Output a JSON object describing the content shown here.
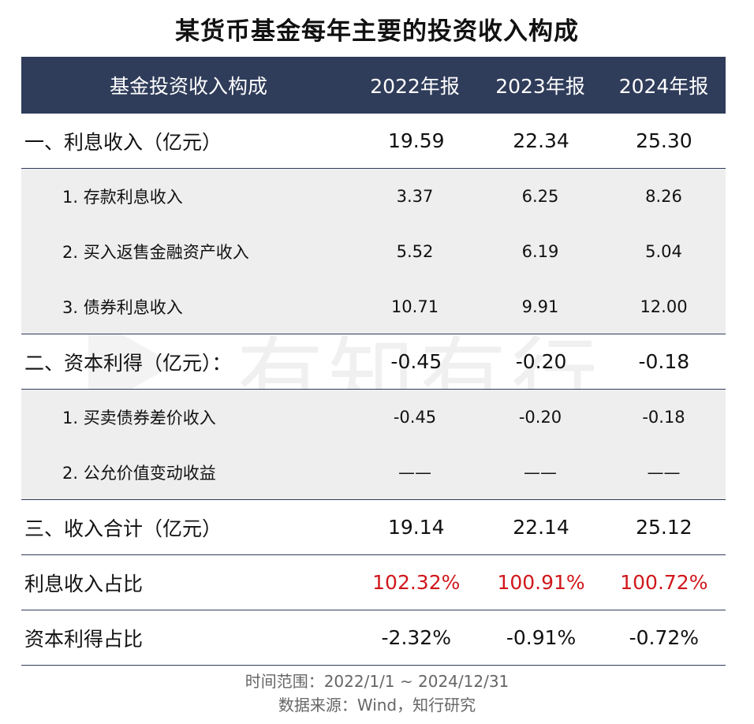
{
  "title": "某货币基金每年主要的投资收入构成",
  "watermark": "有知有行",
  "header": {
    "col0": "基金投资收入构成",
    "col1": "2022年报",
    "col2": "2023年报",
    "col3": "2024年报"
  },
  "rows": [
    {
      "label": "一、利息收入（亿元）",
      "v2022": "19.59",
      "v2023": "22.34",
      "v2024": "25.30"
    },
    {
      "label": "1. 存款利息收入",
      "v2022": "3.37",
      "v2023": "6.25",
      "v2024": "8.26"
    },
    {
      "label": "2. 买入返售金融资产收入",
      "v2022": "5.52",
      "v2023": "6.19",
      "v2024": "5.04"
    },
    {
      "label": "3. 债券利息收入",
      "v2022": "10.71",
      "v2023": "9.91",
      "v2024": "12.00"
    },
    {
      "label": "二、资本利得（亿元）：",
      "v2022": "-0.45",
      "v2023": "-0.20",
      "v2024": "-0.18"
    },
    {
      "label": "1. 买卖债券差价收入",
      "v2022": "-0.45",
      "v2023": "-0.20",
      "v2024": "-0.18"
    },
    {
      "label": "2. 公允价值变动收益",
      "v2022": "——",
      "v2023": "——",
      "v2024": "——"
    },
    {
      "label": "三、收入合计（亿元）",
      "v2022": "19.14",
      "v2023": "22.14",
      "v2024": "25.12"
    },
    {
      "label": "利息收入占比",
      "v2022": "102.32%",
      "v2023": "100.91%",
      "v2024": "100.72%"
    },
    {
      "label": "资本利得占比",
      "v2022": "-2.32%",
      "v2023": "-0.91%",
      "v2024": "-0.72%"
    }
  ],
  "footer": {
    "time_range": "时间范围：2022/1/1 ~ 2024/12/31",
    "source": "数据来源：Wind，知行研究"
  },
  "colors": {
    "header_bg": "#2f3c5a",
    "sub_row_bg": "#eeeeee",
    "highlight_red": "#d0171b"
  }
}
